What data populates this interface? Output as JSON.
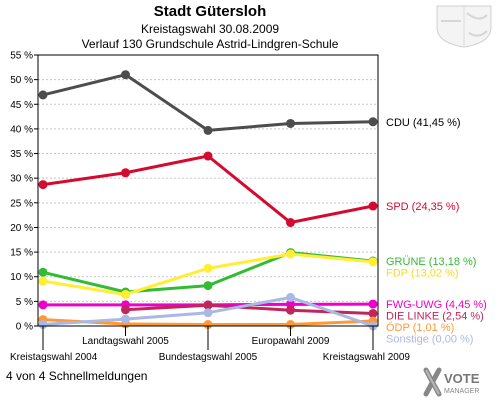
{
  "header": {
    "title": "Stadt Gütersloh",
    "subtitle": "Kreistagswahl 30.08.2009",
    "subtitle2": "Verlauf 130 Grundschule Astrid-Lindgren-Schule"
  },
  "footer": {
    "text": "4 von 4 Schnellmeldungen"
  },
  "logo": {
    "line1": "VOTE",
    "line2": "MANAGER"
  },
  "chart_data": {
    "type": "line",
    "x_labels_bottom": [
      "Kreistagswahl 2004",
      "Bundestagswahl 2005",
      "Kreistagswahl 2009"
    ],
    "x_labels_top": [
      "Landtagswahl 2005",
      "Europawahl 2009"
    ],
    "categories": [
      "Kreistagswahl 2004",
      "Landtagswahl 2005",
      "Bundestagswahl 2005",
      "Europawahl 2009",
      "Kreistagswahl 2009"
    ],
    "ylim": [
      0,
      55
    ],
    "yticks": [
      "0 %",
      "5 %",
      "10 %",
      "15 %",
      "20 %",
      "25 %",
      "30 %",
      "35 %",
      "40 %",
      "45 %",
      "50 %",
      "55 %"
    ],
    "grid": true,
    "series": [
      {
        "name": "CDU",
        "label": "CDU (41,45 %)",
        "color": "#4d4d4d",
        "label_color": "#000000",
        "values": [
          46.9,
          51.0,
          39.7,
          41.1,
          41.45
        ]
      },
      {
        "name": "SPD",
        "label": "SPD (24,35 %)",
        "color": "#d40a30",
        "label_color": "#d40a30",
        "values": [
          28.7,
          31.1,
          34.5,
          21.0,
          24.35
        ]
      },
      {
        "name": "GRÜNE",
        "label": "GRÜNE (13,18 %)",
        "color": "#33bb33",
        "label_color": "#33bb33",
        "values": [
          10.9,
          6.9,
          8.2,
          14.9,
          13.18
        ]
      },
      {
        "name": "FDP",
        "label": "FDP (13,02 %)",
        "color": "#ffee33",
        "label_color": "#f0dd20",
        "values": [
          9.1,
          6.4,
          11.7,
          14.6,
          13.02
        ]
      },
      {
        "name": "FWG-UWG",
        "label": "FWG-UWG (4,45 %)",
        "color": "#ee00cc",
        "label_color": "#ee00cc",
        "values": [
          4.3,
          4.3,
          4.3,
          4.4,
          4.45
        ]
      },
      {
        "name": "DIE LINKE",
        "label": "DIE LINKE (2,54 %)",
        "color": "#c0265a",
        "label_color": "#c0265a",
        "values": [
          null,
          3.3,
          4.2,
          3.2,
          2.54
        ]
      },
      {
        "name": "ODP",
        "label": "ÖDP (1,01 %)",
        "color": "#ff9933",
        "label_color": "#ff9933",
        "values": [
          1.3,
          0.4,
          0.3,
          0.3,
          1.01
        ]
      },
      {
        "name": "Sonstige",
        "label": "Sonstige (0,00 %)",
        "color": "#aab8e6",
        "label_color": "#aab8e6",
        "values": [
          0.3,
          1.4,
          2.7,
          5.8,
          0.0
        ]
      }
    ]
  }
}
